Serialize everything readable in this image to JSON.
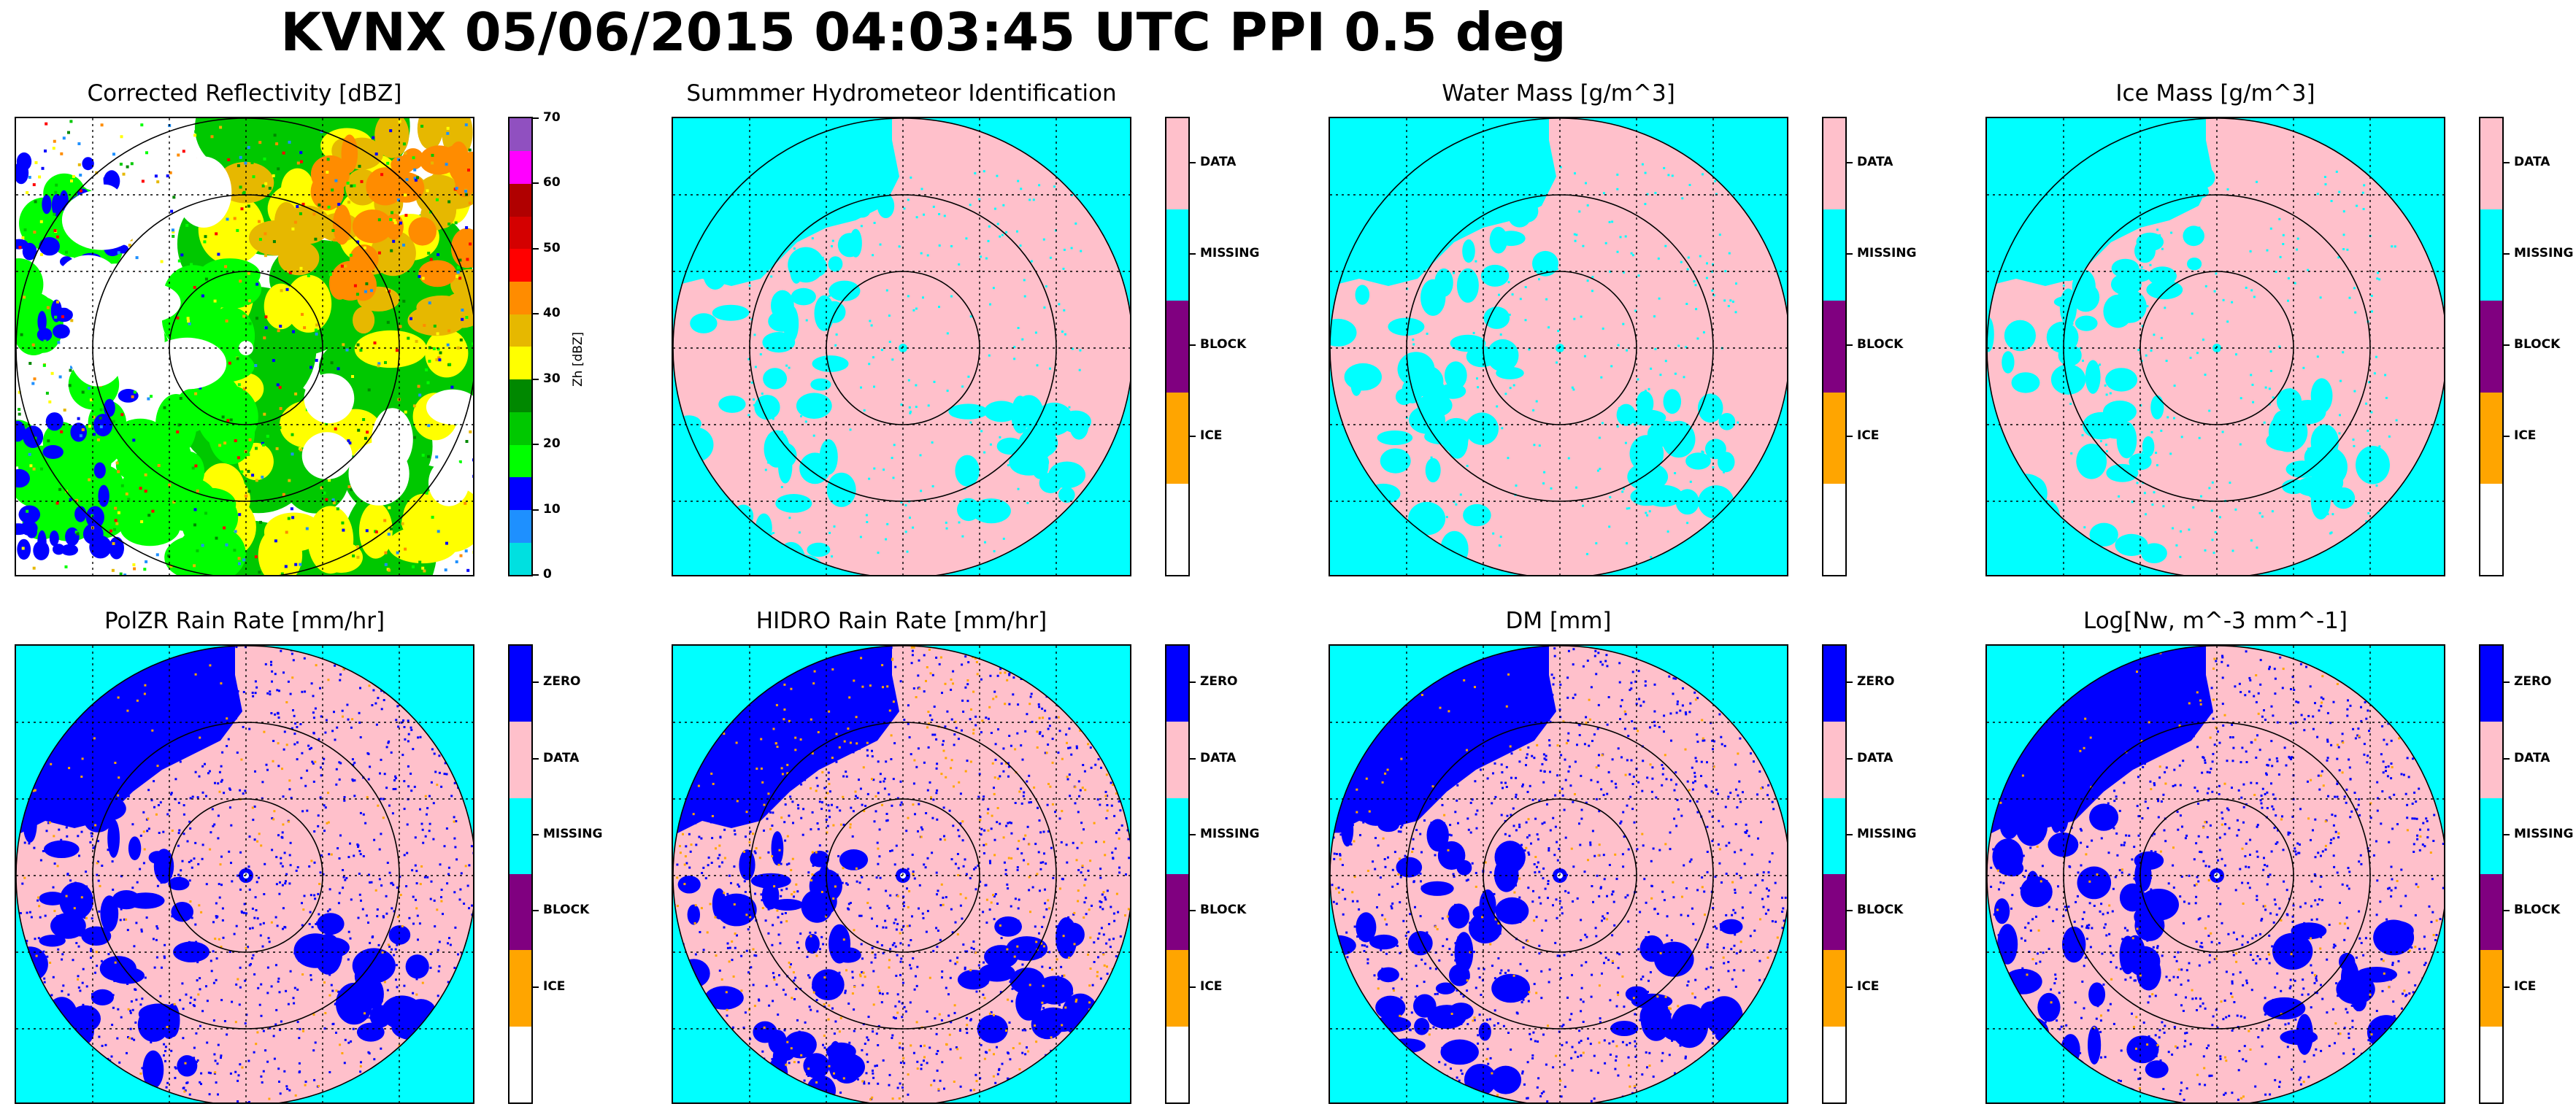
{
  "figure": {
    "title": "KVNX 05/06/2015 04:03:45 UTC PPI 0.5 deg"
  },
  "colors": {
    "zero": "#0000ff",
    "data": "#ffc0cb",
    "missing": "#00ffff",
    "block": "#800080",
    "ice": "#ffa500",
    "none": "#ffffff"
  },
  "chart_data": [
    {
      "type": "heatmap",
      "title": "Corrected Reflectivity [dBZ]",
      "colorbar": {
        "label": "Zh [dBZ]",
        "ticks": [
          "0",
          "10",
          "20",
          "30",
          "40",
          "50",
          "60",
          "70"
        ],
        "range": [
          0,
          70
        ],
        "colors": [
          "#00e0e0",
          "#1e90ff",
          "#0000ff",
          "#00ff00",
          "#00c800",
          "#008800",
          "#ffff00",
          "#e6b800",
          "#ff8c00",
          "#ff0000",
          "#d40000",
          "#b00000",
          "#ff00ff",
          "#9050c0"
        ]
      },
      "range_rings": 3,
      "grid": true
    },
    {
      "type": "heatmap",
      "title": "Summmer Hydrometeor Identification",
      "colorbar": {
        "ticks": [
          "DATA",
          "MISSING",
          "BLOCK",
          "ICE"
        ]
      },
      "range_rings": 3,
      "grid": true
    },
    {
      "type": "heatmap",
      "title": "Water Mass [g/m^3]",
      "colorbar": {
        "ticks": [
          "DATA",
          "MISSING",
          "BLOCK",
          "ICE"
        ]
      },
      "range_rings": 3,
      "grid": true
    },
    {
      "type": "heatmap",
      "title": "Ice Mass [g/m^3]",
      "colorbar": {
        "ticks": [
          "DATA",
          "MISSING",
          "BLOCK",
          "ICE"
        ]
      },
      "range_rings": 3,
      "grid": true
    },
    {
      "type": "heatmap",
      "title": "PolZR Rain Rate [mm/hr]",
      "colorbar": {
        "ticks": [
          "ZERO",
          "DATA",
          "MISSING",
          "BLOCK",
          "ICE"
        ]
      },
      "range_rings": 3,
      "grid": true
    },
    {
      "type": "heatmap",
      "title": "HIDRO Rain Rate [mm/hr]",
      "colorbar": {
        "ticks": [
          "ZERO",
          "DATA",
          "MISSING",
          "BLOCK",
          "ICE"
        ]
      },
      "range_rings": 3,
      "grid": true
    },
    {
      "type": "heatmap",
      "title": "DM [mm]",
      "colorbar": {
        "ticks": [
          "ZERO",
          "DATA",
          "MISSING",
          "BLOCK",
          "ICE"
        ]
      },
      "range_rings": 3,
      "grid": true
    },
    {
      "type": "heatmap",
      "title": "Log[Nw, m^-3 mm^-1]",
      "colorbar": {
        "ticks": [
          "ZERO",
          "DATA",
          "MISSING",
          "BLOCK",
          "ICE"
        ]
      },
      "range_rings": 3,
      "grid": true
    }
  ]
}
